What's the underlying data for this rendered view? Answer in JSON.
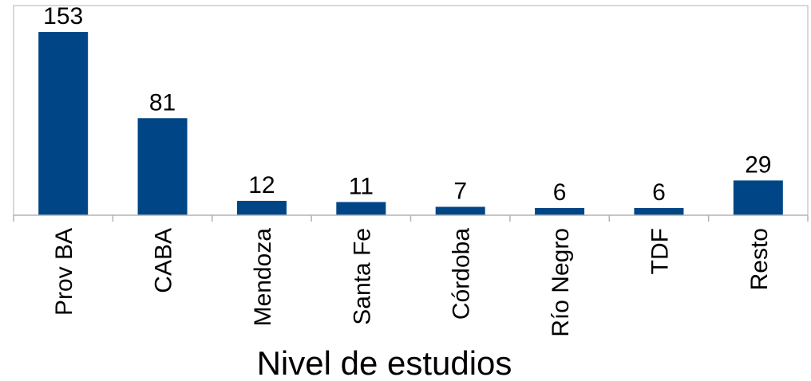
{
  "chart_data": {
    "type": "bar",
    "categories": [
      "Prov BA",
      "CABA",
      "Mendoza",
      "Santa Fe",
      "Córdoba",
      "Río Negro",
      "TDF",
      "Resto"
    ],
    "values": [
      153,
      81,
      12,
      11,
      7,
      6,
      6,
      29
    ],
    "xlabel": "Nivel de estudios",
    "ylabel": "",
    "ylim": [
      0,
      175
    ],
    "grid": false,
    "legend": "none",
    "data_labels": true,
    "bar_color": "#004586",
    "axis_color": "#b3b3b3",
    "plot_border_color": "#b3b3b3"
  }
}
